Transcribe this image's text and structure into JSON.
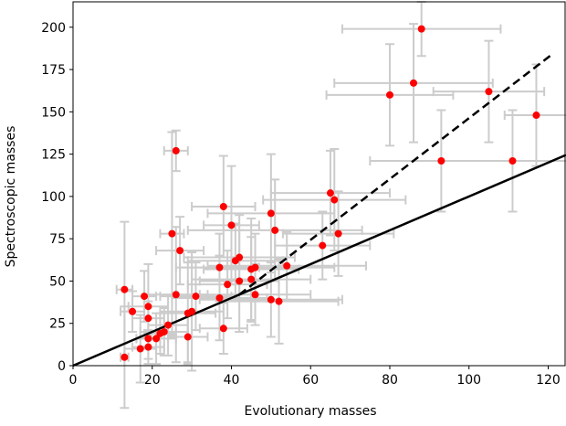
{
  "chart_data": {
    "type": "scatter",
    "xlabel": "Evolutionary masses",
    "ylabel": "Spectroscopic masses",
    "xlim": [
      0,
      124.5
    ],
    "ylim": [
      0,
      215
    ],
    "xticks": [
      0,
      20,
      40,
      60,
      80,
      100,
      120
    ],
    "yticks": [
      0,
      25,
      50,
      75,
      100,
      125,
      150,
      175,
      200
    ],
    "x": [
      13,
      13,
      15,
      17,
      18,
      19,
      19,
      19,
      19,
      21,
      22,
      23,
      24,
      25,
      26,
      26,
      27,
      29,
      29,
      30,
      31,
      37,
      37,
      38,
      38,
      39,
      40,
      41,
      42,
      42,
      45,
      45,
      46,
      46,
      50,
      50,
      51,
      52,
      54,
      63,
      65,
      66,
      67,
      80,
      86,
      88,
      93,
      105,
      111,
      117
    ],
    "y": [
      45,
      5,
      32,
      10,
      41,
      28,
      35,
      16,
      11,
      16,
      19,
      20,
      24,
      78,
      127,
      42,
      68,
      31,
      17,
      32,
      41,
      58,
      40,
      94,
      22,
      48,
      83,
      62,
      64,
      50,
      51,
      57,
      58,
      42,
      39,
      90,
      80,
      38,
      59,
      71,
      102,
      98,
      78,
      160,
      167,
      199,
      121,
      162,
      121,
      148
    ],
    "xerr": [
      2,
      1,
      3,
      4,
      3,
      4,
      5,
      3,
      4,
      5,
      4,
      6,
      5,
      3,
      3,
      8,
      6,
      7,
      5,
      8,
      9,
      10,
      12,
      8,
      6,
      10,
      7,
      12,
      14,
      10,
      15,
      12,
      20,
      14,
      18,
      16,
      22,
      15,
      20,
      12,
      15,
      18,
      14,
      16,
      20,
      20,
      18,
      14,
      18,
      8
    ],
    "yerr": [
      40,
      30,
      12,
      20,
      15,
      10,
      25,
      12,
      10,
      15,
      12,
      14,
      18,
      60,
      12,
      40,
      20,
      30,
      15,
      35,
      20,
      20,
      25,
      30,
      15,
      20,
      35,
      22,
      25,
      30,
      25,
      30,
      20,
      18,
      22,
      35,
      30,
      25,
      20,
      20,
      25,
      30,
      25,
      30,
      35,
      16,
      30,
      30,
      30,
      30
    ],
    "color": "#ff0000",
    "error_color": "#cccccc",
    "lines": [
      {
        "x": [
          0,
          124.5
        ],
        "y": [
          0,
          124.5
        ],
        "color": "#000000",
        "dashed": false
      },
      {
        "x": [
          42,
          121
        ],
        "y": [
          42,
          184
        ],
        "color": "#000000",
        "dashed": true
      }
    ]
  }
}
